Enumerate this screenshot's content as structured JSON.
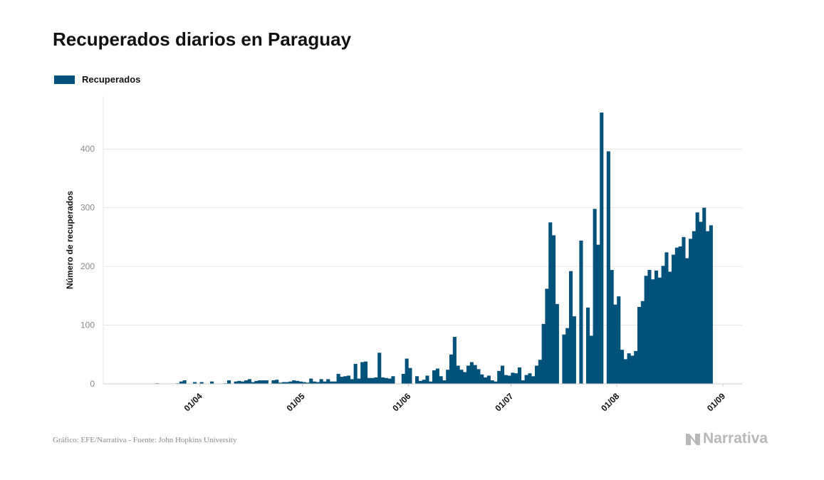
{
  "title": "Recuperados diarios en Paraguay",
  "legend": {
    "label": "Recuperados",
    "color": "#00527a"
  },
  "source": "Gráfico: EFE/Narrativa - Fuente: John Hopkins University",
  "brand": {
    "name": "Narrativa",
    "icon": "narrativa-logo-icon"
  },
  "chart_data": {
    "type": "bar",
    "title": "Recuperados diarios en Paraguay",
    "ylabel": "Número de recuperados",
    "xlabel": "",
    "ylim": [
      0,
      490
    ],
    "yticks": [
      0,
      100,
      200,
      300,
      400
    ],
    "start_date": "2020-03-10",
    "xticks": [
      {
        "label": "01/04",
        "date": "2020-04-01"
      },
      {
        "label": "01/05",
        "date": "2020-05-01"
      },
      {
        "label": "01/06",
        "date": "2020-06-01"
      },
      {
        "label": "01/07",
        "date": "2020-07-01"
      },
      {
        "label": "01/08",
        "date": "2020-08-01"
      },
      {
        "label": "01/09",
        "date": "2020-09-01"
      }
    ],
    "grid": true,
    "legend_position": "top-left",
    "series": [
      {
        "name": "Recuperados",
        "color": "#00527a",
        "values": [
          0,
          0,
          0,
          0,
          0,
          0,
          0,
          0,
          0,
          1,
          0,
          0,
          0,
          0,
          0,
          1,
          4,
          6,
          0,
          0,
          3,
          0,
          3,
          0,
          0,
          4,
          0,
          0,
          0,
          1,
          6,
          0,
          4,
          5,
          4,
          6,
          8,
          3,
          5,
          6,
          6,
          6,
          0,
          6,
          7,
          2,
          3,
          3,
          4,
          6,
          5,
          4,
          3,
          2,
          9,
          4,
          3,
          8,
          4,
          8,
          4,
          4,
          17,
          12,
          13,
          14,
          8,
          34,
          9,
          37,
          38,
          10,
          10,
          11,
          53,
          11,
          10,
          9,
          13,
          0,
          0,
          17,
          43,
          27,
          0,
          13,
          5,
          7,
          14,
          4,
          23,
          26,
          13,
          6,
          24,
          50,
          80,
          31,
          24,
          20,
          31,
          37,
          32,
          25,
          16,
          11,
          14,
          6,
          4,
          22,
          31,
          15,
          14,
          19,
          18,
          28,
          6,
          15,
          18,
          13,
          31,
          41,
          102,
          162,
          275,
          253,
          136,
          0,
          84,
          95,
          192,
          115,
          0,
          244,
          0,
          130,
          82,
          298,
          237,
          462,
          0,
          396,
          194,
          135,
          149,
          58,
          42,
          52,
          48,
          56,
          131,
          141,
          184,
          194,
          178,
          193,
          181,
          201,
          224,
          191,
          220,
          232,
          234,
          250,
          214,
          247,
          260,
          292,
          276,
          300,
          260,
          270
        ]
      }
    ]
  }
}
